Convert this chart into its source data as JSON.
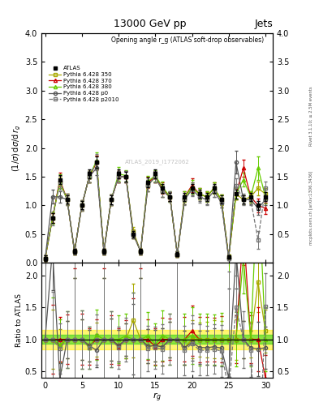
{
  "title": "13000 GeV pp",
  "right_title": "Jets",
  "ylabel_main": "(1/σ) dσ/d r_g",
  "ylabel_ratio": "Ratio to ATLAS",
  "xlabel": "r_g",
  "annotation": "Opening angle r_g (ATLAS soft-drop observables)",
  "watermark": "ATLAS_2019_I1772062",
  "right_label1": "Rivet 3.1.10; ≥ 2.5M events",
  "right_label2": "mcplots.cern.ch [arXiv:1306.3436]",
  "ylim_main": [
    0,
    4
  ],
  "ylim_ratio": [
    0.4,
    2.2
  ],
  "xlim": [
    -0.5,
    31
  ],
  "xticks": [
    0,
    5,
    10,
    15,
    20,
    25,
    30
  ],
  "yticks_main": [
    0,
    0.5,
    1.0,
    1.5,
    2.0,
    2.5,
    3.0,
    3.5,
    4.0
  ],
  "yticks_ratio": [
    0.5,
    1.0,
    1.5,
    2.0
  ],
  "colors": {
    "atlas": "#000000",
    "p350": "#aaaa00",
    "p370": "#cc0000",
    "p380": "#66cc00",
    "p0": "#555555",
    "p2010": "#777777"
  },
  "band_green": [
    0.93,
    1.07
  ],
  "band_yellow": [
    0.85,
    1.15
  ],
  "x_pts": [
    0,
    1,
    2,
    3,
    4,
    5,
    6,
    7,
    8,
    9,
    10,
    11,
    12,
    13,
    14,
    15,
    16,
    17,
    18,
    19,
    20,
    21,
    22,
    23,
    24,
    25,
    26,
    27,
    28,
    29,
    30
  ],
  "y_atlas": [
    0.08,
    0.78,
    1.45,
    1.1,
    0.2,
    1.0,
    1.55,
    1.75,
    0.2,
    1.1,
    1.55,
    1.5,
    0.5,
    0.2,
    1.4,
    1.55,
    1.3,
    1.15,
    0.15,
    1.15,
    1.3,
    1.2,
    1.15,
    1.3,
    1.1,
    0.1,
    1.2,
    1.1,
    1.15,
    1.0,
    1.15
  ],
  "y_350": [
    0.08,
    0.78,
    1.4,
    1.1,
    0.2,
    1.0,
    1.5,
    1.75,
    0.2,
    1.1,
    1.5,
    1.5,
    0.55,
    0.2,
    1.35,
    1.5,
    1.25,
    1.15,
    0.15,
    1.1,
    1.3,
    1.2,
    1.15,
    1.3,
    1.1,
    0.1,
    1.2,
    1.1,
    1.15,
    1.3,
    1.2
  ],
  "y_370": [
    0.08,
    0.78,
    1.45,
    1.1,
    0.2,
    1.0,
    1.5,
    1.75,
    0.2,
    1.1,
    1.5,
    1.5,
    0.5,
    0.2,
    1.4,
    1.5,
    1.3,
    1.15,
    0.15,
    1.15,
    1.35,
    1.2,
    1.15,
    1.3,
    1.1,
    0.1,
    1.2,
    1.65,
    1.15,
    1.0,
    0.95
  ],
  "y_380": [
    0.08,
    0.78,
    1.42,
    1.1,
    0.2,
    1.0,
    1.5,
    1.78,
    0.2,
    1.1,
    1.55,
    1.52,
    0.5,
    0.2,
    1.42,
    1.52,
    1.32,
    1.15,
    0.15,
    1.15,
    1.32,
    1.2,
    1.15,
    1.3,
    1.1,
    0.1,
    1.2,
    1.45,
    1.15,
    1.65,
    1.15
  ],
  "y_p0": [
    0.08,
    1.15,
    1.15,
    1.1,
    0.2,
    1.0,
    1.5,
    1.65,
    0.2,
    1.1,
    1.5,
    1.5,
    0.5,
    0.2,
    1.35,
    1.5,
    1.25,
    1.15,
    0.15,
    1.1,
    1.28,
    1.15,
    1.1,
    1.25,
    1.05,
    0.08,
    1.75,
    1.1,
    1.1,
    0.95,
    1.1
  ],
  "y_p2010": [
    0.08,
    0.78,
    1.4,
    1.1,
    0.2,
    1.0,
    1.5,
    1.75,
    0.2,
    1.1,
    1.5,
    1.5,
    0.5,
    0.2,
    1.35,
    1.5,
    1.25,
    1.15,
    0.15,
    1.1,
    1.28,
    1.15,
    1.1,
    1.25,
    1.05,
    0.08,
    1.35,
    1.1,
    1.1,
    0.4,
    1.3
  ],
  "yerr_atlas": [
    0.05,
    0.08,
    0.08,
    0.07,
    0.04,
    0.07,
    0.08,
    0.1,
    0.04,
    0.08,
    0.08,
    0.08,
    0.06,
    0.04,
    0.08,
    0.08,
    0.08,
    0.07,
    0.04,
    0.07,
    0.08,
    0.07,
    0.07,
    0.08,
    0.07,
    0.03,
    0.08,
    0.07,
    0.07,
    0.08,
    0.08
  ],
  "yerr_350": [
    0.05,
    0.09,
    0.1,
    0.08,
    0.05,
    0.08,
    0.1,
    0.12,
    0.05,
    0.09,
    0.1,
    0.1,
    0.07,
    0.05,
    0.1,
    0.1,
    0.1,
    0.08,
    0.05,
    0.08,
    0.1,
    0.08,
    0.08,
    0.1,
    0.08,
    0.04,
    0.1,
    0.08,
    0.08,
    0.12,
    0.1
  ],
  "yerr_370": [
    0.05,
    0.09,
    0.12,
    0.1,
    0.05,
    0.09,
    0.1,
    0.12,
    0.05,
    0.09,
    0.1,
    0.1,
    0.07,
    0.05,
    0.1,
    0.1,
    0.1,
    0.08,
    0.05,
    0.09,
    0.12,
    0.1,
    0.09,
    0.1,
    0.09,
    0.04,
    0.1,
    0.15,
    0.1,
    0.12,
    0.1
  ],
  "yerr_380": [
    0.05,
    0.1,
    0.12,
    0.1,
    0.05,
    0.09,
    0.1,
    0.14,
    0.05,
    0.09,
    0.12,
    0.1,
    0.07,
    0.05,
    0.1,
    0.1,
    0.1,
    0.09,
    0.05,
    0.09,
    0.12,
    0.1,
    0.09,
    0.1,
    0.09,
    0.04,
    0.1,
    0.12,
    0.1,
    0.2,
    0.12
  ],
  "yerr_p0": [
    0.05,
    0.12,
    0.1,
    0.08,
    0.05,
    0.08,
    0.1,
    0.12,
    0.05,
    0.09,
    0.1,
    0.1,
    0.07,
    0.05,
    0.1,
    0.1,
    0.1,
    0.08,
    0.05,
    0.08,
    0.1,
    0.08,
    0.08,
    0.1,
    0.08,
    0.04,
    0.2,
    0.08,
    0.08,
    0.12,
    0.1
  ],
  "yerr_p2010": [
    0.05,
    0.12,
    0.12,
    0.1,
    0.05,
    0.09,
    0.1,
    0.14,
    0.05,
    0.09,
    0.1,
    0.1,
    0.07,
    0.05,
    0.1,
    0.1,
    0.1,
    0.09,
    0.05,
    0.09,
    0.12,
    0.1,
    0.09,
    0.1,
    0.09,
    0.04,
    0.12,
    0.1,
    0.1,
    0.15,
    0.12
  ]
}
